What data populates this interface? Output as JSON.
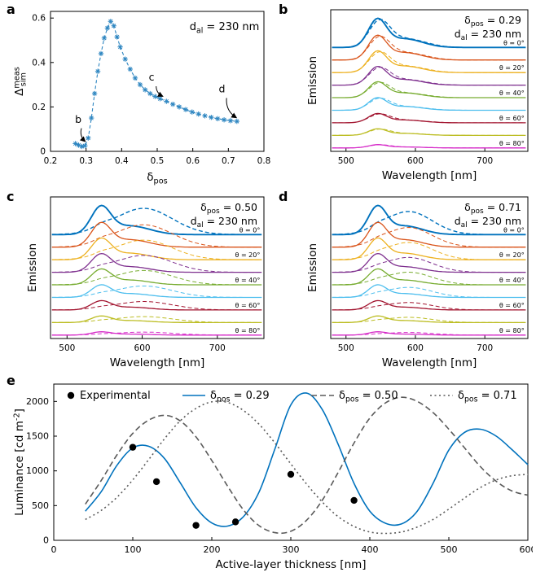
{
  "figure": {
    "background": "#ffffff"
  },
  "panel_letters": {
    "a": "a",
    "b": "b",
    "c": "c",
    "d": "d",
    "e": "e"
  },
  "chart_data": [
    {
      "id": "a",
      "type": "scatter-line",
      "marker": "asterisk",
      "annotation": "d_{al} = 230 nm",
      "xlabel": "δ_{pos}",
      "ylabel": "Δ^{meas}_{sim}",
      "xlim": [
        0.2,
        0.8
      ],
      "ylim": [
        0,
        0.63
      ],
      "xticks": [
        0.2,
        0.3,
        0.4,
        0.5,
        0.6,
        0.7,
        0.8
      ],
      "xtick_labels": [
        "0.2",
        "0.3",
        "0.4",
        "0.5",
        "0.6",
        "0.7",
        "0.8"
      ],
      "yticks": [
        0,
        0.2,
        0.4,
        0.6
      ],
      "ytick_labels": [
        "0",
        "0.2",
        "0.4",
        "0.6"
      ],
      "line_color": "#2E86C1",
      "x": [
        0.27,
        0.279,
        0.288,
        0.297,
        0.306,
        0.315,
        0.324,
        0.333,
        0.342,
        0.351,
        0.36,
        0.369,
        0.378,
        0.387,
        0.396,
        0.41,
        0.424,
        0.438,
        0.452,
        0.466,
        0.48,
        0.494,
        0.508,
        0.526,
        0.544,
        0.562,
        0.58,
        0.598,
        0.616,
        0.634,
        0.652,
        0.67,
        0.688,
        0.706,
        0.724
      ],
      "y": [
        0.035,
        0.028,
        0.022,
        0.025,
        0.06,
        0.15,
        0.26,
        0.36,
        0.44,
        0.51,
        0.555,
        0.585,
        0.565,
        0.515,
        0.47,
        0.415,
        0.37,
        0.33,
        0.3,
        0.277,
        0.26,
        0.247,
        0.237,
        0.225,
        0.212,
        0.2,
        0.188,
        0.177,
        0.168,
        0.16,
        0.153,
        0.147,
        0.142,
        0.138,
        0.135
      ],
      "callouts": [
        {
          "label": "b",
          "tx": 0.278,
          "ty": 0.128,
          "sx": 0.287,
          "sy": 0.104,
          "ex": 0.297,
          "ey": 0.045
        },
        {
          "label": "c",
          "tx": 0.484,
          "ty": 0.318,
          "sx": 0.497,
          "sy": 0.293,
          "ex": 0.515,
          "ey": 0.248
        },
        {
          "label": "d",
          "tx": 0.682,
          "ty": 0.265,
          "sx": 0.695,
          "sy": 0.24,
          "ex": 0.722,
          "ey": 0.152
        }
      ]
    },
    {
      "id": "b",
      "type": "spectra",
      "header": [
        "δ_{pos} = 0.29",
        "d_{al} = 230 nm"
      ],
      "xlabel": "Wavelength [nm]",
      "ylabel": "Emission",
      "xlim": [
        478,
        762
      ],
      "ylim": [
        -0.15,
        6.05
      ],
      "xticks": [
        500,
        600,
        700
      ],
      "xtick_labels": [
        "500",
        "600",
        "700"
      ],
      "wavelength_range": [
        480,
        760
      ],
      "angles_deg": [
        0,
        10,
        20,
        30,
        40,
        50,
        60,
        70,
        80
      ],
      "angle_labels": [
        {
          "index": 0,
          "text": "θ = 0°"
        },
        {
          "index": 2,
          "text": "θ = 20°"
        },
        {
          "index": 4,
          "text": "θ = 40°"
        },
        {
          "index": 6,
          "text": "θ = 60°"
        },
        {
          "index": 8,
          "text": "θ = 80°"
        }
      ],
      "colors": [
        "#0072BD",
        "#D95319",
        "#EDB120",
        "#7E2F8E",
        "#77AC30",
        "#4DBEEE",
        "#A2142F",
        "#BCBD22",
        "#D62BC8"
      ],
      "offsets": [
        4.4,
        3.85,
        3.3,
        2.75,
        2.2,
        1.65,
        1.1,
        0.55,
        0
      ],
      "amplitudes": [
        1.15,
        0.98,
        0.86,
        0.74,
        0.63,
        0.5,
        0.37,
        0.26,
        0.13
      ],
      "solid_components": [
        {
          "peak": 545,
          "sigma": 13,
          "ratio": 1.0
        },
        {
          "peak": 584,
          "sigma": 26,
          "ratio": 0.33
        }
      ],
      "dashed_components": [
        {
          "peak": 548,
          "sigma": 15,
          "ratio": 0.93
        },
        {
          "peak": 586,
          "sigma": 28,
          "ratio": 0.33
        }
      ]
    },
    {
      "id": "c",
      "type": "spectra",
      "header": [
        "δ_{pos} = 0.50",
        "d_{al} = 230 nm"
      ],
      "xlabel": "Wavelength [nm]",
      "ylabel": "Emission",
      "xlim": [
        478,
        762
      ],
      "ylim": [
        -0.15,
        6.05
      ],
      "xticks": [
        500,
        600,
        700
      ],
      "xtick_labels": [
        "500",
        "600",
        "700"
      ],
      "wavelength_range": [
        480,
        760
      ],
      "angles_deg": [
        0,
        10,
        20,
        30,
        40,
        50,
        60,
        70,
        80
      ],
      "angle_labels": [
        {
          "index": 0,
          "text": "θ = 0°"
        },
        {
          "index": 2,
          "text": "θ = 20°"
        },
        {
          "index": 4,
          "text": "θ = 40°"
        },
        {
          "index": 6,
          "text": "θ = 60°"
        },
        {
          "index": 8,
          "text": "θ = 80°"
        }
      ],
      "colors": [
        "#0072BD",
        "#D95319",
        "#EDB120",
        "#7E2F8E",
        "#77AC30",
        "#4DBEEE",
        "#A2142F",
        "#BCBD22",
        "#D62BC8"
      ],
      "offsets": [
        4.4,
        3.85,
        3.3,
        2.75,
        2.2,
        1.65,
        1.1,
        0.55,
        0
      ],
      "amplitudes": [
        1.15,
        0.98,
        0.86,
        0.74,
        0.63,
        0.5,
        0.37,
        0.26,
        0.13
      ],
      "solid_components": [
        {
          "peak": 545,
          "sigma": 13,
          "ratio": 1.0
        },
        {
          "peak": 584,
          "sigma": 26,
          "ratio": 0.33
        }
      ],
      "dashed_components": [
        {
          "peak": 602,
          "sigma": 38,
          "ratio": 1.0
        },
        {
          "peak": 546,
          "sigma": 12,
          "ratio": 0.12
        }
      ]
    },
    {
      "id": "d",
      "type": "spectra",
      "header": [
        "δ_{pos} = 0.71",
        "d_{al} = 230 nm"
      ],
      "xlabel": "Wavelength [nm]",
      "ylabel": "Emission",
      "xlim": [
        478,
        762
      ],
      "ylim": [
        -0.15,
        6.05
      ],
      "xticks": [
        500,
        600,
        700
      ],
      "xtick_labels": [
        "500",
        "600",
        "700"
      ],
      "wavelength_range": [
        480,
        760
      ],
      "angles_deg": [
        0,
        10,
        20,
        30,
        40,
        50,
        60,
        70,
        80
      ],
      "angle_labels": [
        {
          "index": 0,
          "text": "θ = 0°"
        },
        {
          "index": 2,
          "text": "θ = 20°"
        },
        {
          "index": 4,
          "text": "θ = 40°"
        },
        {
          "index": 6,
          "text": "θ = 60°"
        },
        {
          "index": 8,
          "text": "θ = 80°"
        }
      ],
      "colors": [
        "#0072BD",
        "#D95319",
        "#EDB120",
        "#7E2F8E",
        "#77AC30",
        "#4DBEEE",
        "#A2142F",
        "#BCBD22",
        "#D62BC8"
      ],
      "offsets": [
        4.4,
        3.85,
        3.3,
        2.75,
        2.2,
        1.65,
        1.1,
        0.55,
        0
      ],
      "amplitudes": [
        1.15,
        0.98,
        0.86,
        0.74,
        0.63,
        0.5,
        0.37,
        0.26,
        0.13
      ],
      "solid_components": [
        {
          "peak": 545,
          "sigma": 13,
          "ratio": 1.0
        },
        {
          "peak": 584,
          "sigma": 26,
          "ratio": 0.33
        }
      ],
      "dashed_components": [
        {
          "peak": 590,
          "sigma": 34,
          "ratio": 0.88
        },
        {
          "peak": 546,
          "sigma": 12,
          "ratio": 0.1
        }
      ]
    },
    {
      "id": "e",
      "type": "line-scatter",
      "xlabel": "Active-layer thickness [nm]",
      "ylabel": "Luminance [cd m^{-2}]",
      "xlim": [
        0,
        600
      ],
      "ylim": [
        0,
        2250
      ],
      "xticks": [
        0,
        100,
        200,
        300,
        400,
        500,
        600
      ],
      "xtick_labels": [
        "0",
        "100",
        "200",
        "300",
        "400",
        "500",
        "600"
      ],
      "yticks": [
        0,
        500,
        1000,
        1500,
        2000
      ],
      "ytick_labels": [
        "0",
        "500",
        "1000",
        "1500",
        "2000"
      ],
      "legend": [
        {
          "type": "dot",
          "color": "#000000",
          "label": "Experimental"
        },
        {
          "type": "solid",
          "color": "#0072BD",
          "label": "δ_{pos} = 0.29"
        },
        {
          "type": "dashed",
          "color": "#5a5a5a",
          "label": "δ_{pos} = 0.50"
        },
        {
          "type": "dotted",
          "color": "#5a5a5a",
          "label": "δ_{pos} = 0.71"
        }
      ],
      "series": [
        {
          "name": "delta_pos 0.29",
          "style": "solid",
          "color": "#0072BD",
          "x": [
            40,
            60,
            80,
            100,
            120,
            140,
            160,
            180,
            200,
            220,
            240,
            260,
            280,
            300,
            320,
            340,
            360,
            380,
            400,
            420,
            440,
            460,
            480,
            500,
            520,
            540,
            560,
            580,
            600
          ],
          "y": [
            420,
            700,
            1080,
            1330,
            1355,
            1180,
            830,
            470,
            250,
            205,
            340,
            700,
            1320,
            1950,
            2120,
            1880,
            1380,
            820,
            420,
            245,
            235,
            420,
            820,
            1300,
            1555,
            1600,
            1500,
            1305,
            1090
          ]
        },
        {
          "name": "delta_pos 0.50",
          "style": "dashed",
          "color": "#5a5a5a",
          "x": [
            40,
            60,
            80,
            100,
            120,
            140,
            160,
            180,
            200,
            220,
            240,
            260,
            280,
            300,
            320,
            340,
            360,
            380,
            400,
            420,
            440,
            460,
            480,
            500,
            520,
            540,
            560,
            580,
            600
          ],
          "y": [
            520,
            860,
            1230,
            1540,
            1730,
            1800,
            1720,
            1490,
            1150,
            780,
            440,
            210,
            110,
            130,
            290,
            580,
            980,
            1400,
            1760,
            1980,
            2060,
            2000,
            1840,
            1600,
            1330,
            1060,
            850,
            710,
            650
          ]
        },
        {
          "name": "delta_pos 0.71",
          "style": "dotted",
          "color": "#5a5a5a",
          "x": [
            40,
            60,
            80,
            100,
            120,
            140,
            160,
            180,
            200,
            220,
            240,
            260,
            280,
            300,
            320,
            340,
            360,
            380,
            400,
            420,
            440,
            460,
            480,
            500,
            520,
            540,
            560,
            580,
            600
          ],
          "y": [
            300,
            430,
            620,
            870,
            1160,
            1460,
            1720,
            1900,
            1995,
            1985,
            1870,
            1670,
            1400,
            1100,
            810,
            550,
            340,
            200,
            120,
            100,
            120,
            190,
            300,
            450,
            610,
            760,
            870,
            930,
            950
          ]
        }
      ],
      "experimental": {
        "x": [
          100,
          130,
          180,
          230,
          300,
          380
        ],
        "y": [
          1340,
          845,
          215,
          265,
          950,
          575
        ]
      }
    }
  ]
}
